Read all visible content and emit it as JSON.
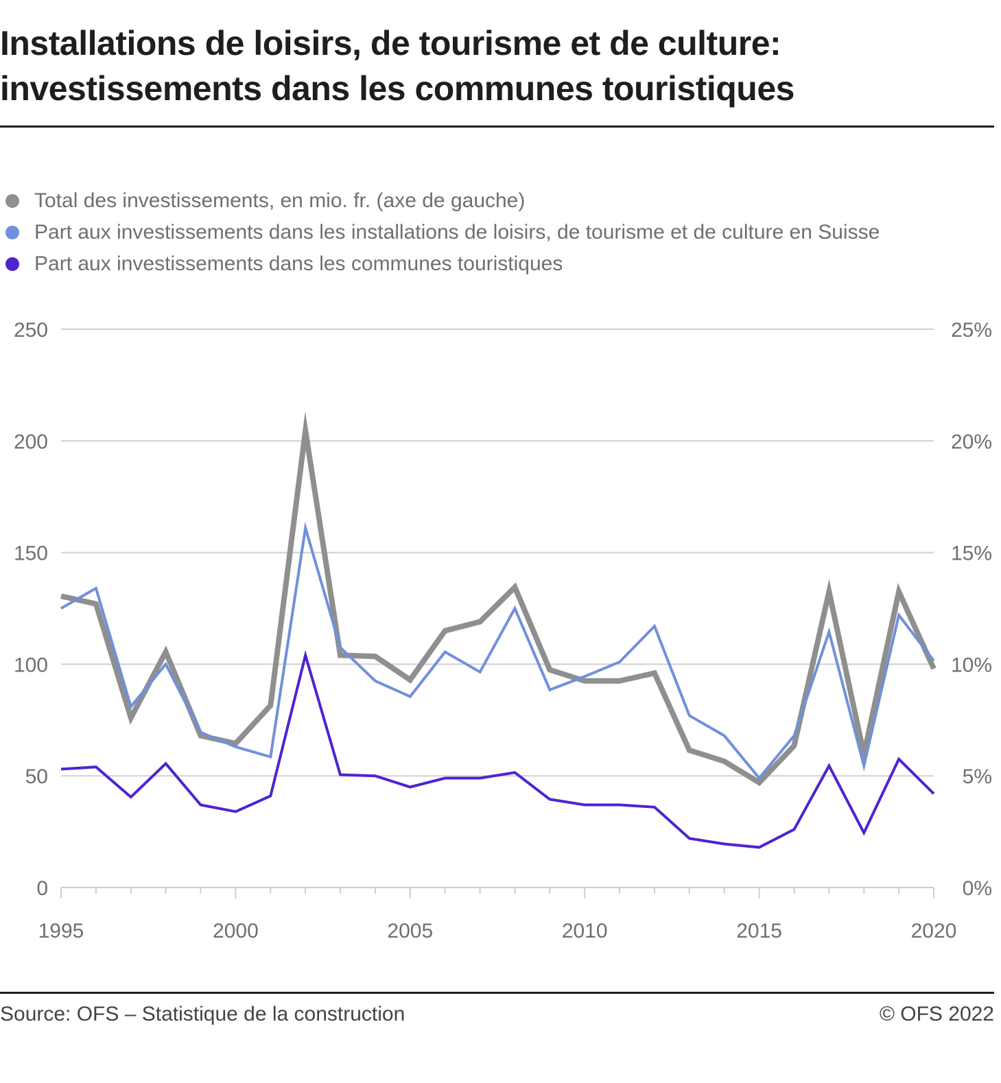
{
  "title_lines": [
    "Installations de loisirs, de tourisme et de culture:",
    "investissements dans les communes touristiques"
  ],
  "legend": [
    {
      "label": "Total des investissements, en mio. fr. (axe de gauche)",
      "color": "#8f8f8f"
    },
    {
      "label": "Part aux investissements dans les installations de loisirs, de tourisme et de culture en Suisse",
      "color": "#7190db"
    },
    {
      "label": "Part aux investissements dans les communes touristiques",
      "color": "#4f23d1"
    }
  ],
  "footer": {
    "source": "Source: OFS – Statistique de la construction",
    "copyright": "© OFS 2022"
  },
  "chart_data": {
    "type": "line",
    "title": "Installations de loisirs, de tourisme et de culture: investissements dans les communes touristiques",
    "x": [
      1995,
      1996,
      1997,
      1998,
      1999,
      2000,
      2001,
      2002,
      2003,
      2004,
      2005,
      2006,
      2007,
      2008,
      2009,
      2010,
      2011,
      2012,
      2013,
      2014,
      2015,
      2016,
      2017,
      2018,
      2019,
      2020
    ],
    "x_ticks": [
      1995,
      2000,
      2005,
      2010,
      2015,
      2020
    ],
    "x_tick_labels": [
      "1995",
      "2000",
      "2005",
      "2010",
      "2015",
      "2020"
    ],
    "xlim": [
      1995,
      2020
    ],
    "y_left": {
      "label": "",
      "ylim": [
        0,
        250
      ],
      "ticks": [
        0,
        50,
        100,
        150,
        200,
        250
      ],
      "tick_labels": [
        "0",
        "50",
        "100",
        "150",
        "200",
        "250"
      ]
    },
    "y_right": {
      "label": "",
      "ylim": [
        0,
        25
      ],
      "ticks": [
        0,
        5,
        10,
        15,
        20,
        25
      ],
      "tick_labels": [
        "0%",
        "5%",
        "10%",
        "15%",
        "20%",
        "25%"
      ]
    },
    "grid": true,
    "legend_position": "top-left",
    "series": [
      {
        "name": "Total des investissements, en mio. fr. (axe de gauche)",
        "axis": "left",
        "color": "#8f8f8f",
        "values": [
          130.5,
          127,
          76,
          105.5,
          68,
          64.5,
          81.5,
          204.5,
          104,
          103.5,
          93,
          115,
          119,
          134.5,
          97.5,
          92.5,
          92.5,
          96,
          61.5,
          56.5,
          47,
          63.5,
          132.5,
          59.5,
          132.5,
          98
        ]
      },
      {
        "name": "Part aux investissements dans les installations de loisirs, de tourisme et de culture en Suisse",
        "axis": "right",
        "unit": "%",
        "color": "#7190db",
        "values": [
          12.5,
          13.4,
          8.1,
          10.0,
          6.95,
          6.3,
          5.85,
          16.1,
          10.75,
          9.25,
          8.55,
          10.55,
          9.65,
          12.5,
          8.85,
          9.45,
          10.1,
          11.7,
          7.7,
          6.8,
          4.9,
          6.8,
          11.45,
          5.45,
          12.2,
          10.15
        ]
      },
      {
        "name": "Part aux investissements dans les communes touristiques",
        "axis": "right",
        "unit": "%",
        "color": "#4f23d1",
        "values": [
          5.3,
          5.4,
          4.05,
          5.55,
          3.7,
          3.4,
          4.1,
          10.4,
          5.05,
          5.0,
          4.5,
          4.9,
          4.9,
          5.15,
          3.95,
          3.7,
          3.7,
          3.6,
          2.2,
          1.95,
          1.8,
          2.6,
          5.45,
          2.45,
          5.75,
          4.2
        ]
      }
    ]
  }
}
